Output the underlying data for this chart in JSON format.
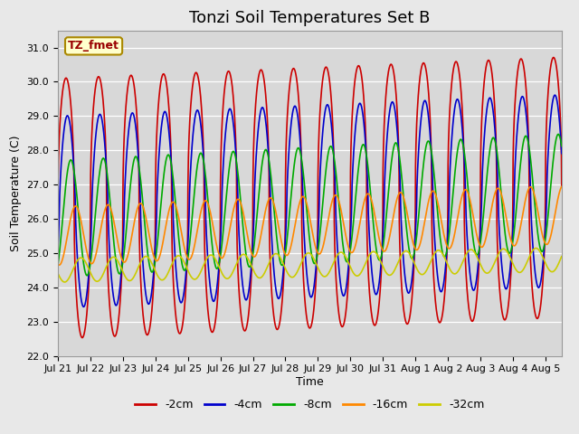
{
  "title": "Tonzi Soil Temperatures Set B",
  "xlabel": "Time",
  "ylabel": "Soil Temperature (C)",
  "ylim": [
    22.0,
    31.5
  ],
  "yticks": [
    22.0,
    23.0,
    24.0,
    25.0,
    26.0,
    27.0,
    28.0,
    29.0,
    30.0,
    31.0
  ],
  "legend_label": "TZ_fmet",
  "series_labels": [
    "-2cm",
    "-4cm",
    "-8cm",
    "-16cm",
    "-32cm"
  ],
  "series_colors": [
    "#cc0000",
    "#0000cc",
    "#00aa00",
    "#ff8800",
    "#cccc00"
  ],
  "line_width": 1.2,
  "fig_bg_color": "#e8e8e8",
  "plot_bg_color": "#d8d8d8",
  "n_days": 15.5,
  "points_per_day": 144,
  "amplitudes": [
    3.8,
    2.8,
    1.7,
    0.85,
    0.35
  ],
  "means": [
    26.3,
    26.2,
    26.0,
    25.5,
    24.5
  ],
  "phase_offsets_hours": [
    0.0,
    1.0,
    3.5,
    7.0,
    11.0
  ],
  "mean_trend": [
    0.04,
    0.04,
    0.05,
    0.04,
    0.02
  ],
  "peak_sharpness": [
    0.45,
    0.7,
    0.9,
    0.95,
    1.0
  ],
  "xtick_labels": [
    "Jul 21",
    "Jul 22",
    "Jul 23",
    "Jul 24",
    "Jul 25",
    "Jul 26",
    "Jul 27",
    "Jul 28",
    "Jul 29",
    "Jul 30",
    "Jul 31",
    "Aug 1",
    "Aug 2",
    "Aug 3",
    "Aug 4",
    "Aug 5"
  ],
  "title_fontsize": 13,
  "axis_fontsize": 9,
  "tick_fontsize": 8,
  "legend_fontsize": 9,
  "tzfmet_fontsize": 9
}
